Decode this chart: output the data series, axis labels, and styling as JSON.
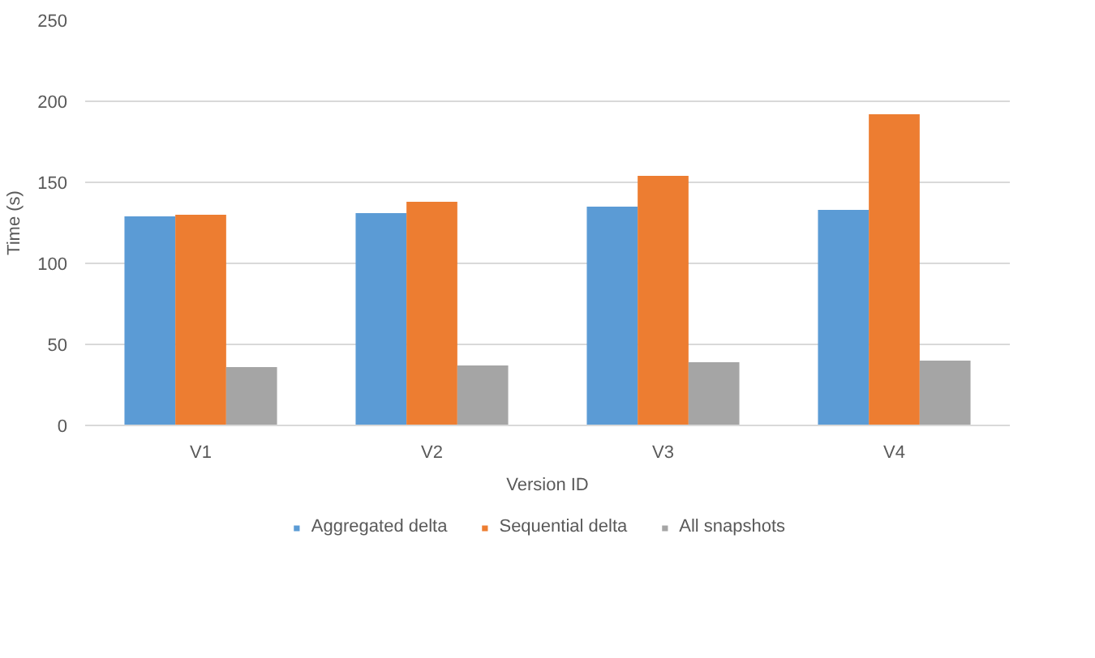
{
  "chart_data": {
    "type": "bar",
    "xlabel": "Version ID",
    "ylabel": "Time (s)",
    "categories": [
      "V1",
      "V2",
      "V3",
      "V4"
    ],
    "series": [
      {
        "name": "Aggregated delta",
        "color": "#5b9bd5",
        "values": [
          129,
          131,
          135,
          133
        ]
      },
      {
        "name": "Sequential delta",
        "color": "#ed7d31",
        "values": [
          130,
          138,
          154,
          192
        ]
      },
      {
        "name": "All snapshots",
        "color": "#a5a5a5",
        "values": [
          36,
          37,
          39,
          40
        ]
      }
    ],
    "ylim": [
      0,
      250
    ],
    "yticks": [
      0,
      50,
      100,
      150,
      200,
      250
    ],
    "grid": "y",
    "legend": "bottom"
  }
}
